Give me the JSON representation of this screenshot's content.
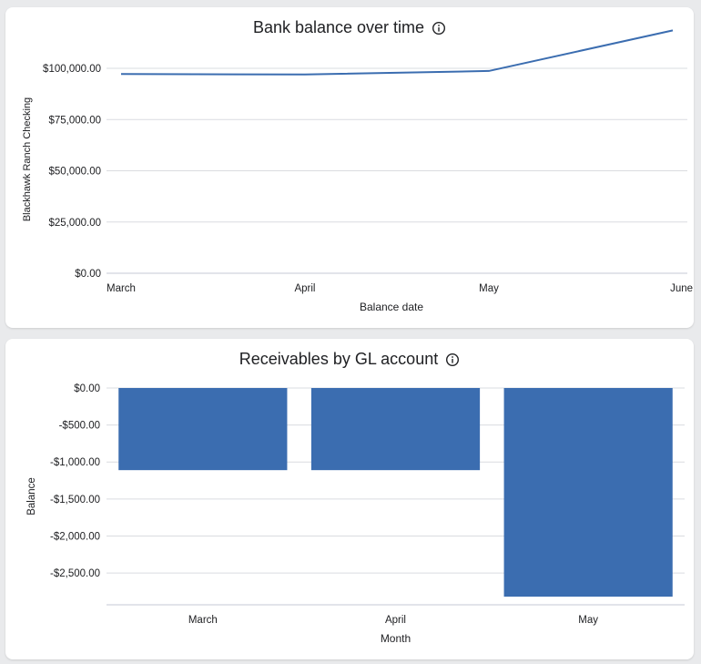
{
  "colors": {
    "series": "#3b6db0",
    "grid": "#dadce0",
    "axis": "#c5c9d6",
    "text": "#202124"
  },
  "icons": {
    "info": "info-icon"
  },
  "chart_data": [
    {
      "type": "line",
      "title": "Bank balance over time",
      "xlabel": "Balance date",
      "ylabel": "Blackhawk Ranch Checking",
      "categories": [
        "March",
        "April",
        "May",
        "June"
      ],
      "series": [
        {
          "name": "Blackhawk Ranch Checking",
          "values": [
            97200,
            97000,
            98700,
            118500
          ]
        }
      ],
      "ylim": [
        0,
        120000
      ],
      "yticks": [
        0,
        25000,
        50000,
        75000,
        100000
      ],
      "yticklabels": [
        "$0.00",
        "$25,000.00",
        "$50,000.00",
        "$75,000.00",
        "$100,000.00"
      ],
      "grid": true,
      "legend": "none"
    },
    {
      "type": "bar",
      "title": "Receivables by GL account",
      "xlabel": "Month",
      "ylabel": "Balance",
      "categories": [
        "March",
        "April",
        "May"
      ],
      "values": [
        -1110,
        -1110,
        -2820
      ],
      "ylim": [
        -2930,
        0
      ],
      "yticks": [
        0,
        -500,
        -1000,
        -1500,
        -2000,
        -2500
      ],
      "yticklabels": [
        "$0.00",
        "-$500.00",
        "-$1,000.00",
        "-$1,500.00",
        "-$2,000.00",
        "-$2,500.00"
      ],
      "grid": true,
      "legend": "none"
    }
  ]
}
